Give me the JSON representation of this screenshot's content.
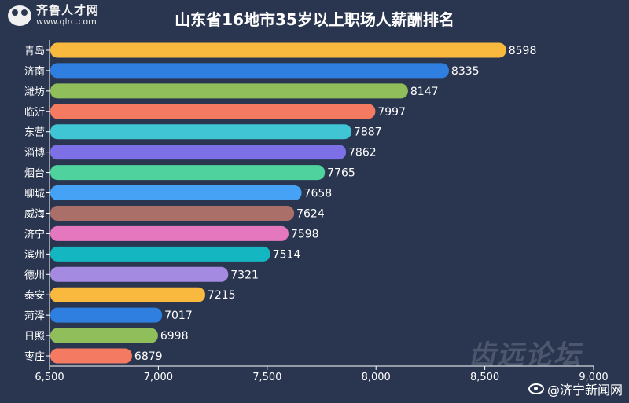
{
  "logo": {
    "name": "齐鲁人才网",
    "url": "www.qlrc.com"
  },
  "watermarks": {
    "forum": "齿远论坛",
    "weibo": "@济宁新闻网"
  },
  "chart_data": {
    "type": "bar",
    "orientation": "horizontal",
    "title": "山东省16地市35岁以上职场人薪酬排名",
    "categories": [
      "青岛",
      "济南",
      "潍坊",
      "临沂",
      "东营",
      "淄博",
      "烟台",
      "聊城",
      "威海",
      "济宁",
      "滨州",
      "德州",
      "泰安",
      "菏泽",
      "日照",
      "枣庄"
    ],
    "values": [
      8598,
      8335,
      8147,
      7997,
      7887,
      7862,
      7765,
      7658,
      7624,
      7598,
      7514,
      7321,
      7215,
      7017,
      6998,
      6879
    ],
    "colors": [
      "#f9b93f",
      "#2f7fe0",
      "#8fbe5a",
      "#f47a62",
      "#3fc5d3",
      "#7d6fe6",
      "#4fd29e",
      "#45a2f5",
      "#aa6f68",
      "#e477bd",
      "#13b6c1",
      "#a58ae2",
      "#f9b93f",
      "#2f7fe0",
      "#8fbe5a",
      "#f47a62"
    ],
    "xlim": [
      6500,
      9000
    ],
    "xticks": [
      6500,
      7000,
      7500,
      8000,
      8500,
      9000
    ],
    "xtick_labels": [
      "6,500",
      "7,000",
      "7,500",
      "8,000",
      "8,500",
      "9,000"
    ],
    "xlabel": "",
    "ylabel": "",
    "legend": "none",
    "grid": false
  }
}
